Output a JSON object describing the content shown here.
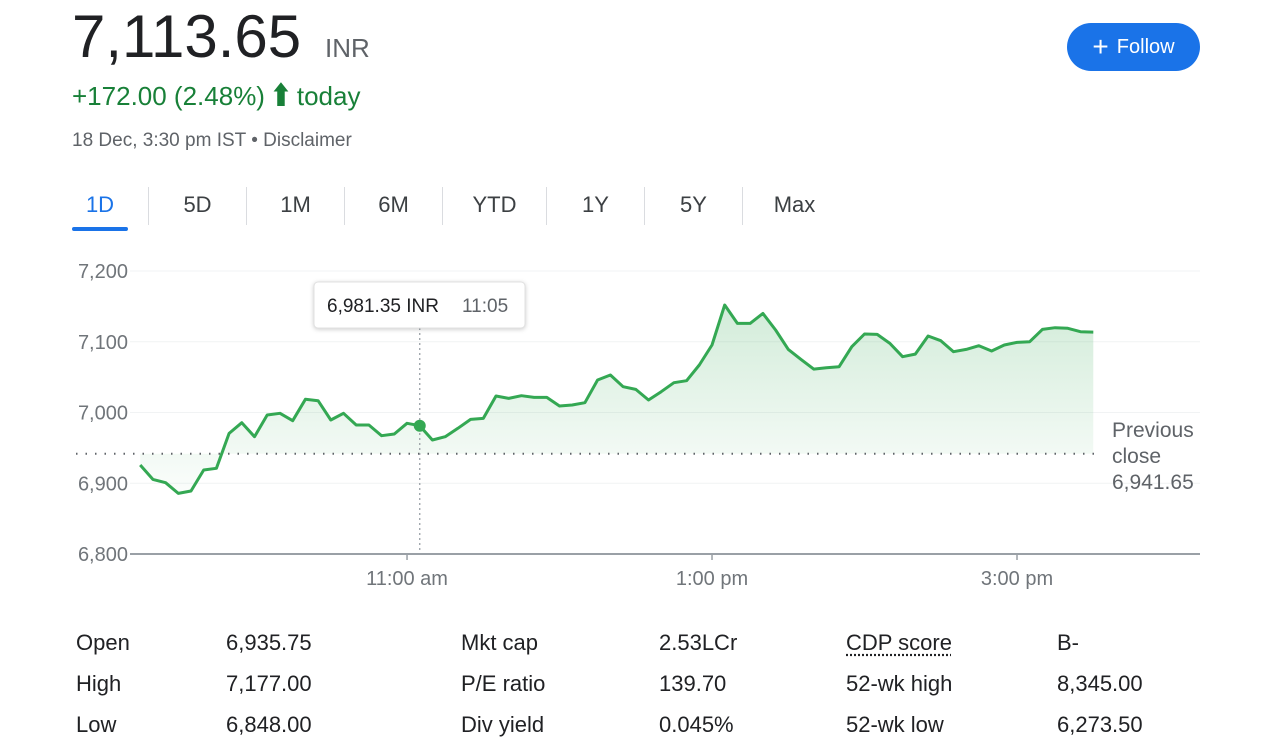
{
  "header": {
    "price": "7,113.65",
    "currency": "INR",
    "change": "+172.00 (2.48%)",
    "change_icon": "arrow-up-icon",
    "change_period": "today",
    "timestamp": "18 Dec, 3:30 pm IST",
    "separator": "•",
    "disclaimer": "Disclaimer",
    "follow_label": "Follow",
    "follow_icon": "plus-icon"
  },
  "tabs": [
    "1D",
    "5D",
    "1M",
    "6M",
    "YTD",
    "1Y",
    "5Y",
    "Max"
  ],
  "active_tab": "1D",
  "colors": {
    "accent": "#1a73e8",
    "positive": "#188038",
    "line": "#34a853"
  },
  "chart_data": {
    "type": "area",
    "x_range": [
      "09:15",
      "15:30"
    ],
    "xlim": [
      "09:11",
      "16:12"
    ],
    "x_ticks": [
      "11:00 am",
      "1:00 pm",
      "3:00 pm"
    ],
    "y_ticks": [
      "7,200",
      "7,100",
      "7,000",
      "6,900",
      "6,800"
    ],
    "ylim": [
      6800,
      7200
    ],
    "grid": true,
    "values": [
      6925.8,
      6905.5,
      6900.8,
      6885.7,
      6889.0,
      6918.7,
      6921.1,
      6970.5,
      6985.6,
      6965.8,
      6996.4,
      6998.8,
      6988.4,
      7018.6,
      7016.7,
      6989.4,
      6998.8,
      6982.3,
      6982.3,
      6967.2,
      6969.6,
      6984.7,
      6981.35,
      6961.1,
      6965.8,
      6977.6,
      6990.3,
      6991.7,
      7023.3,
      7020.0,
      7023.8,
      7021.4,
      7021.4,
      7009.2,
      7010.6,
      7013.9,
      7045.9,
      7053.0,
      7036.5,
      7032.7,
      7017.6,
      7029.4,
      7042.1,
      7045.0,
      7067.1,
      7095.4,
      7151.9,
      7126.0,
      7126.0,
      7140.1,
      7116.6,
      7089.2,
      7075.1,
      7061.4,
      7063.3,
      7064.7,
      7093.0,
      7110.9,
      7110.4,
      7097.7,
      7078.9,
      7082.6,
      7108.1,
      7101.5,
      7085.9,
      7089.2,
      7094.4,
      7086.9,
      7095.4,
      7099.1,
      7100.1,
      7117.5,
      7119.9,
      7119.0,
      7114.2,
      7113.65
    ],
    "previous_close": {
      "label_line1": "Previous",
      "label_line2": "close",
      "value": "6,941.65",
      "number": 6941.65
    },
    "tooltip": {
      "value": "6,981.35 INR",
      "time": "11:05",
      "index": 22
    }
  },
  "stats": [
    [
      {
        "label": "Open",
        "value": "6,935.75"
      },
      {
        "label": "Mkt cap",
        "value": "2.53LCr"
      },
      {
        "label": "CDP score",
        "value": "B-"
      }
    ],
    [
      {
        "label": "High",
        "value": "7,177.00"
      },
      {
        "label": "P/E ratio",
        "value": "139.70"
      },
      {
        "label": "52-wk high",
        "value": "8,345.00"
      }
    ],
    [
      {
        "label": "Low",
        "value": "6,848.00"
      },
      {
        "label": "Div yield",
        "value": "0.045%"
      },
      {
        "label": "52-wk low",
        "value": "6,273.50"
      }
    ]
  ]
}
